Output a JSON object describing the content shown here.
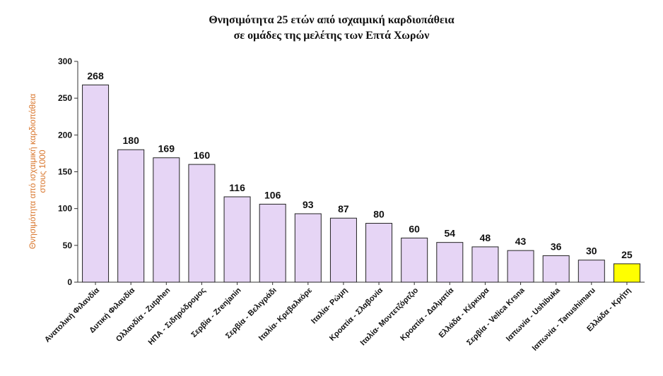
{
  "chart_data": {
    "type": "bar",
    "title": "Θνησιμότητα 25 ετών από ισχαιμική καρδιοπάθεια",
    "subtitle": "σε ομάδες της μελέτης των Επτά Χωρών",
    "ylabel_line1": "Θνησιμότητα από ισχαιμική καρδιοπάθεια",
    "ylabel_line2": "στους 1000",
    "ylim": [
      0,
      300
    ],
    "yticks": [
      0,
      50,
      100,
      150,
      200,
      250,
      300
    ],
    "categories": [
      "Ανατολική Φιλανδία",
      "Δυτική Φιλανδία",
      "Ολλανδία - Zutphen",
      "ΗΠΑ - Σιδηρόδρομος",
      "Σερβία - Zrenjanin",
      "Σερβία - Βελιγράδι",
      "Ιταλία- Κρεβαλκόρε",
      "Ιταλία- Ρώμη",
      "Κροατία - Σλαβονία",
      "Ιταλία- Μοντετζόρτζιο",
      "Κροατία - Δαλματία",
      "Ελλάδα - Κέρκυρα",
      "Σερβία - Velica Krsna",
      "Ιαπωνία - Ushibuka",
      "Ιαπωνία - Tanushimaru",
      "Ελλάδα - Κρήτη"
    ],
    "values": [
      268,
      180,
      169,
      160,
      116,
      106,
      93,
      87,
      80,
      60,
      54,
      48,
      43,
      36,
      30,
      25
    ],
    "value_labels": [
      "268",
      "180",
      "169",
      "160",
      "116",
      "106",
      "93",
      "87",
      "80",
      "60",
      "54",
      "48",
      "43",
      "36",
      "30",
      "25"
    ],
    "bar_color": "#e6d5f5",
    "highlight_color": "#ffff00",
    "highlight_index": 15,
    "ylabel_color": "#d9772e",
    "grid": false
  }
}
